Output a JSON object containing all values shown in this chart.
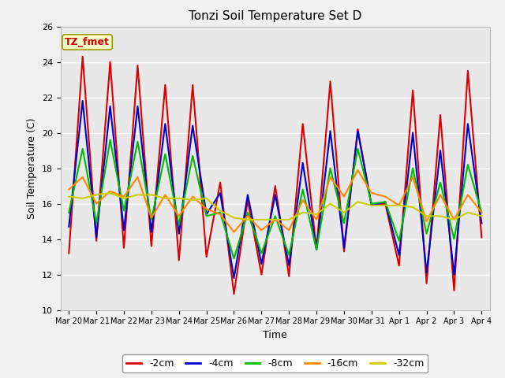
{
  "title": "Tonzi Soil Temperature Set D",
  "xlabel": "Time",
  "ylabel": "Soil Temperature (C)",
  "legend_label": "TZ_fmet",
  "ylim": [
    10,
    26
  ],
  "yticks": [
    10,
    12,
    14,
    16,
    18,
    20,
    22,
    24,
    26
  ],
  "series_colors": {
    "-2cm": "#dd0000",
    "-4cm": "#0000cc",
    "-8cm": "#00bb00",
    "-16cm": "#ff8800",
    "-32cm": "#cccc00"
  },
  "series_labels": [
    "-2cm",
    "-4cm",
    "-8cm",
    "-16cm",
    "-32cm"
  ],
  "x_tick_labels": [
    "Mar 20",
    "Mar 21",
    "Mar 22",
    "Mar 23",
    "Mar 24",
    "Mar 25",
    "Mar 26",
    "Mar 27",
    "Mar 28",
    "Mar 29",
    "Mar 30",
    "Mar 31",
    "Apr 1",
    "Apr 2",
    "Apr 3",
    "Apr 4"
  ],
  "plot_bg_color": "#e8e8e8",
  "fig_bg_color": "#f0f0f0",
  "data": {
    "-2cm": [
      13.2,
      24.3,
      13.9,
      24.0,
      13.5,
      23.8,
      13.6,
      22.7,
      12.8,
      22.7,
      13.0,
      17.2,
      10.9,
      16.2,
      12.0,
      17.0,
      11.9,
      20.5,
      13.4,
      22.9,
      13.3,
      20.2,
      15.9,
      16.0,
      12.5,
      22.4,
      11.5,
      21.0,
      11.1,
      23.5,
      14.1
    ],
    "-4cm": [
      14.7,
      21.8,
      14.1,
      21.5,
      14.5,
      21.5,
      14.4,
      20.5,
      14.3,
      20.4,
      15.4,
      16.6,
      11.8,
      16.5,
      12.6,
      16.5,
      12.5,
      18.3,
      13.4,
      20.1,
      13.5,
      20.1,
      15.9,
      16.1,
      13.1,
      20.0,
      12.1,
      19.0,
      12.0,
      20.5,
      14.9
    ],
    "-8cm": [
      15.5,
      19.1,
      14.9,
      19.6,
      15.6,
      19.5,
      15.1,
      18.8,
      14.8,
      18.7,
      15.3,
      15.5,
      12.9,
      15.5,
      13.2,
      15.3,
      13.1,
      16.8,
      13.4,
      18.0,
      14.9,
      19.1,
      16.0,
      16.1,
      13.9,
      18.0,
      14.3,
      17.2,
      14.0,
      18.2,
      15.5
    ],
    "-16cm": [
      16.8,
      17.5,
      16.0,
      16.7,
      16.4,
      17.5,
      15.2,
      16.5,
      15.3,
      16.4,
      15.7,
      15.4,
      14.4,
      15.3,
      14.5,
      15.1,
      14.5,
      16.2,
      15.1,
      17.5,
      16.4,
      17.9,
      16.6,
      16.4,
      15.9,
      17.5,
      15.0,
      16.5,
      15.1,
      16.5,
      15.5
    ],
    "-32cm": [
      16.4,
      16.3,
      16.5,
      16.6,
      16.3,
      16.5,
      16.5,
      16.3,
      16.3,
      16.2,
      16.3,
      15.6,
      15.2,
      15.1,
      15.1,
      15.1,
      15.1,
      15.5,
      15.4,
      16.0,
      15.5,
      16.1,
      15.9,
      15.9,
      15.9,
      15.8,
      15.3,
      15.3,
      15.1,
      15.5,
      15.3
    ]
  }
}
